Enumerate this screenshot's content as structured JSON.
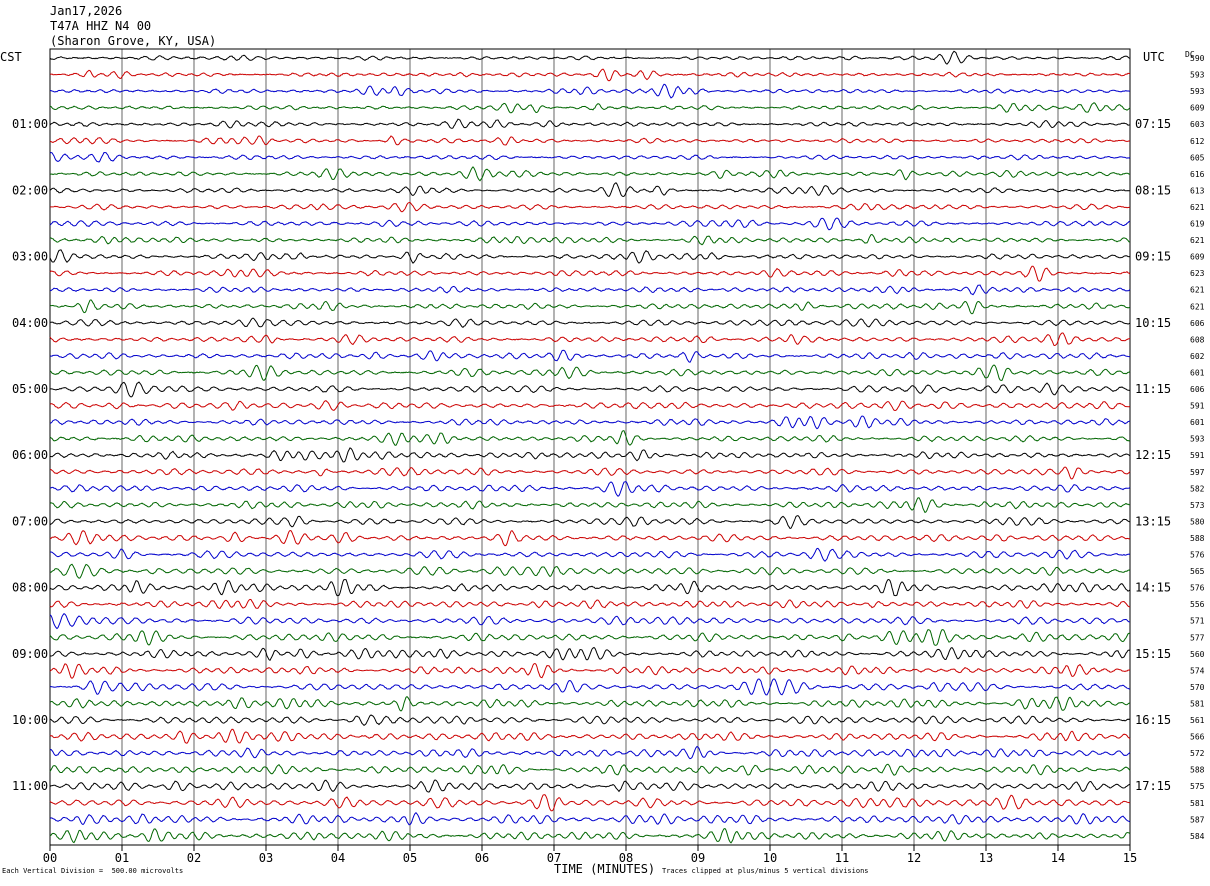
{
  "header": {
    "date": "Jan17,2026",
    "station": "T47A HHZ N4 00",
    "location": "(Sharon Grove, KY, USA)"
  },
  "left_tz": "CST",
  "right_tz": "UTC",
  "dc_label": "DC",
  "footer": {
    "scale_note": "Each Vertical Division =  500.00 microvolts",
    "xlabel": "TIME (MINUTES)",
    "clip_note": "Traces clipped at plus/minus 5 vertical divisions"
  },
  "colors": {
    "trace_cycle": [
      "#000000",
      "#cc0000",
      "#0000cc",
      "#006600"
    ],
    "grid": "#000000",
    "background": "#ffffff"
  },
  "chart_data": {
    "type": "line",
    "title": "T47A HHZ N4 00",
    "xlabel": "TIME (MINUTES)",
    "xlim": [
      0,
      15
    ],
    "x_ticks": [
      "00",
      "01",
      "02",
      "03",
      "04",
      "05",
      "06",
      "07",
      "08",
      "09",
      "10",
      "11",
      "12",
      "13",
      "14",
      "15"
    ],
    "left_hour_labels": [
      "01:00",
      "02:00",
      "03:00",
      "04:00",
      "05:00",
      "06:00",
      "07:00",
      "08:00",
      "09:00",
      "10:00",
      "11:00"
    ],
    "right_hour_labels": [
      "07:15",
      "08:15",
      "09:15",
      "10:15",
      "11:15",
      "12:15",
      "13:15",
      "14:15",
      "15:15",
      "16:15",
      "17:15"
    ],
    "trace_count": 48,
    "traces_per_hour": 4,
    "dc_offsets": [
      590,
      593,
      593,
      609,
      603,
      612,
      605,
      616,
      613,
      621,
      619,
      621,
      609,
      623,
      621,
      621,
      606,
      608,
      602,
      601,
      606,
      591,
      601,
      593,
      591,
      597,
      582,
      573,
      580,
      588,
      576,
      565,
      576,
      556,
      571,
      577,
      560,
      574,
      570,
      581,
      561,
      566,
      572,
      588,
      575,
      581,
      587,
      584
    ],
    "vertical_division_microvolts": 500.0,
    "clip_divisions": 5
  }
}
